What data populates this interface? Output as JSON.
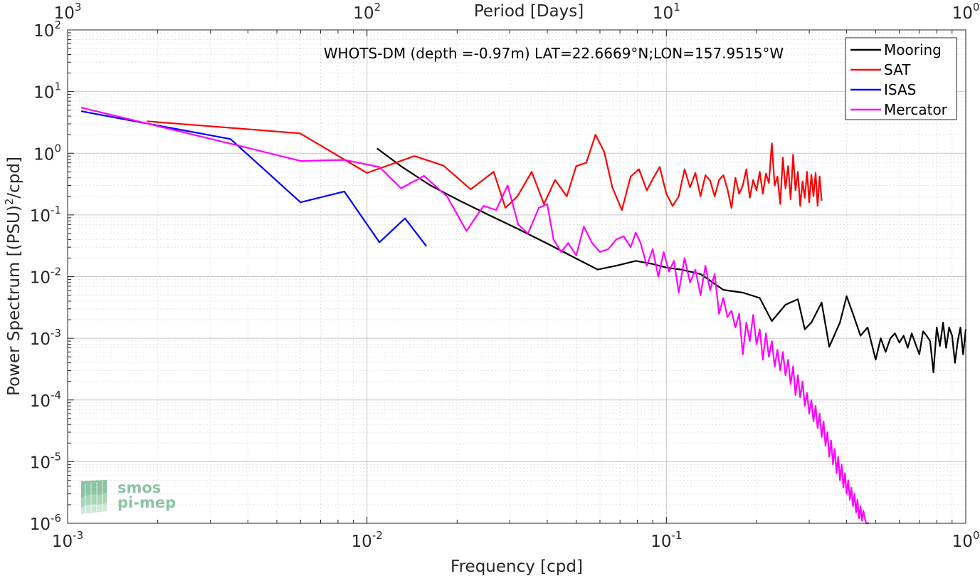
{
  "chart_data": {
    "type": "line",
    "title": "",
    "annotation": "WHOTS-DM (depth =-0.97m) LAT=22.6669°N;LON=157.9515°W",
    "xlabel": "Frequency [cpd]",
    "ylabel": "Power Spectrum [(PSU)²/cpd]",
    "top_xlabel": "Period [Days]",
    "xscale": "log",
    "yscale": "log",
    "xlim": [
      0.001,
      1
    ],
    "ylim": [
      1e-06,
      100
    ],
    "grid": true,
    "legend_position": "top-right",
    "x_ticks": [
      {
        "value": 0.001,
        "base": "10",
        "exp": "-3"
      },
      {
        "value": 0.01,
        "base": "10",
        "exp": "-2"
      },
      {
        "value": 0.1,
        "base": "10",
        "exp": "-1"
      },
      {
        "value": 1,
        "base": "10",
        "exp": "0"
      }
    ],
    "top_ticks": [
      {
        "value": 0.001,
        "base": "10",
        "exp": "3"
      },
      {
        "value": 0.01,
        "base": "10",
        "exp": "2"
      },
      {
        "value": 0.1,
        "base": "10",
        "exp": "1"
      },
      {
        "value": 1,
        "base": "10",
        "exp": "0"
      }
    ],
    "y_ticks": [
      {
        "value": 100,
        "base": "10",
        "exp": "2"
      },
      {
        "value": 10,
        "base": "10",
        "exp": "1"
      },
      {
        "value": 1,
        "base": "10",
        "exp": "0"
      },
      {
        "value": 0.1,
        "base": "10",
        "exp": "-1"
      },
      {
        "value": 0.01,
        "base": "10",
        "exp": "-2"
      },
      {
        "value": 0.001,
        "base": "10",
        "exp": "-3"
      },
      {
        "value": 0.0001,
        "base": "10",
        "exp": "-4"
      },
      {
        "value": 1e-05,
        "base": "10",
        "exp": "-5"
      },
      {
        "value": 1e-06,
        "base": "10",
        "exp": "-6"
      }
    ],
    "series": [
      {
        "name": "Mooring",
        "color": "#000000",
        "x": [
          0.0108,
          0.0131,
          0.0163,
          0.0204,
          0.0255,
          0.0318,
          0.0397,
          0.0496,
          0.059,
          0.068,
          0.079,
          0.09,
          0.1,
          0.112,
          0.13,
          0.155,
          0.18,
          0.205,
          0.225,
          0.25,
          0.275,
          0.29,
          0.305,
          0.33,
          0.35,
          0.38,
          0.4,
          0.42,
          0.445,
          0.47,
          0.5,
          0.52,
          0.54,
          0.56,
          0.58,
          0.6,
          0.62,
          0.64,
          0.66,
          0.68,
          0.7,
          0.72,
          0.74,
          0.76,
          0.78,
          0.8,
          0.82,
          0.84,
          0.86,
          0.88,
          0.9,
          0.92,
          0.94,
          0.96,
          0.98,
          1.0
        ],
        "y": [
          1.2,
          0.6,
          0.3,
          0.17,
          0.1,
          0.06,
          0.035,
          0.02,
          0.013,
          0.015,
          0.018,
          0.016,
          0.014,
          0.013,
          0.011,
          0.0061,
          0.0055,
          0.0045,
          0.0019,
          0.0035,
          0.0043,
          0.0014,
          0.0018,
          0.0038,
          0.00073,
          0.0018,
          0.0048,
          0.0025,
          0.0011,
          0.0015,
          0.00045,
          0.001,
          0.0006,
          0.001,
          0.0012,
          0.00085,
          0.0011,
          0.0007,
          0.0012,
          0.0008,
          0.00055,
          0.0013,
          0.0011,
          0.0009,
          0.00028,
          0.0015,
          0.00075,
          0.0018,
          0.0007,
          0.0015,
          0.0011,
          0.0004,
          0.0009,
          0.0015,
          0.00055,
          0.0014
        ]
      },
      {
        "name": "SAT",
        "color": "#ff0000",
        "x": [
          0.00184,
          0.00598,
          0.01,
          0.0144,
          0.018,
          0.0222,
          0.0265,
          0.029,
          0.0318,
          0.0355,
          0.039,
          0.0425,
          0.0465,
          0.05,
          0.054,
          0.058,
          0.062,
          0.066,
          0.071,
          0.076,
          0.081,
          0.086,
          0.09,
          0.095,
          0.1,
          0.105,
          0.11,
          0.115,
          0.12,
          0.125,
          0.13,
          0.135,
          0.14,
          0.145,
          0.15,
          0.155,
          0.16,
          0.165,
          0.17,
          0.175,
          0.18,
          0.185,
          0.19,
          0.195,
          0.2,
          0.205,
          0.21,
          0.215,
          0.22,
          0.225,
          0.23,
          0.235,
          0.24,
          0.245,
          0.25,
          0.255,
          0.26,
          0.265,
          0.27,
          0.275,
          0.28,
          0.285,
          0.29,
          0.295,
          0.3,
          0.305,
          0.31,
          0.315,
          0.32,
          0.325,
          0.33
        ],
        "y": [
          3.3,
          2.1,
          0.48,
          0.9,
          0.63,
          0.26,
          0.5,
          0.13,
          0.2,
          0.5,
          0.15,
          0.37,
          0.2,
          0.62,
          0.7,
          2.0,
          1.05,
          0.28,
          0.12,
          0.42,
          0.55,
          0.25,
          0.38,
          0.6,
          0.22,
          0.14,
          0.2,
          0.55,
          0.28,
          0.48,
          0.2,
          0.44,
          0.36,
          0.2,
          0.37,
          0.44,
          0.26,
          0.13,
          0.4,
          0.22,
          0.3,
          0.55,
          0.19,
          0.37,
          0.25,
          0.5,
          0.22,
          0.47,
          0.33,
          1.45,
          0.3,
          0.42,
          0.15,
          0.85,
          0.27,
          0.62,
          0.18,
          0.95,
          0.25,
          0.5,
          0.14,
          0.35,
          0.19,
          0.5,
          0.16,
          0.45,
          0.2,
          0.48,
          0.14,
          0.42,
          0.17
        ]
      },
      {
        "name": "ISAS",
        "color": "#0000ff",
        "x": [
          0.00111,
          0.0035,
          0.006,
          0.0084,
          0.011,
          0.0134,
          0.0158
        ],
        "y": [
          4.8,
          1.7,
          0.16,
          0.24,
          0.036,
          0.088,
          0.031
        ]
      },
      {
        "name": "Mercator",
        "color": "#ff00ff",
        "x": [
          0.00111,
          0.0038,
          0.006,
          0.0084,
          0.011,
          0.013,
          0.0155,
          0.0185,
          0.0215,
          0.0245,
          0.027,
          0.0295,
          0.032,
          0.0345,
          0.0375,
          0.04,
          0.042,
          0.0445,
          0.047,
          0.05,
          0.053,
          0.0565,
          0.06,
          0.064,
          0.068,
          0.072,
          0.076,
          0.079,
          0.082,
          0.086,
          0.09,
          0.094,
          0.098,
          0.102,
          0.106,
          0.11,
          0.115,
          0.12,
          0.125,
          0.13,
          0.135,
          0.14,
          0.145,
          0.15,
          0.155,
          0.16,
          0.165,
          0.17,
          0.175,
          0.18,
          0.185,
          0.19,
          0.195,
          0.2,
          0.205,
          0.21,
          0.215,
          0.22,
          0.225,
          0.23,
          0.235,
          0.24,
          0.245,
          0.25,
          0.255,
          0.26,
          0.265,
          0.27,
          0.275,
          0.28,
          0.285,
          0.29,
          0.295,
          0.3,
          0.305,
          0.31,
          0.315,
          0.32,
          0.325,
          0.33,
          0.335,
          0.34,
          0.345,
          0.35,
          0.355,
          0.36,
          0.365,
          0.37,
          0.375,
          0.38,
          0.385,
          0.39,
          0.395,
          0.4,
          0.405,
          0.41,
          0.415,
          0.42,
          0.425,
          0.43,
          0.435,
          0.44,
          0.445,
          0.45,
          0.455,
          0.46,
          0.465,
          0.47,
          0.475
        ],
        "y": [
          5.5,
          1.3,
          0.75,
          0.78,
          0.6,
          0.27,
          0.43,
          0.2,
          0.055,
          0.14,
          0.12,
          0.3,
          0.07,
          0.05,
          0.13,
          0.15,
          0.04,
          0.025,
          0.035,
          0.022,
          0.065,
          0.035,
          0.025,
          0.028,
          0.04,
          0.045,
          0.03,
          0.052,
          0.035,
          0.015,
          0.028,
          0.01,
          0.025,
          0.012,
          0.018,
          0.0055,
          0.02,
          0.008,
          0.013,
          0.005,
          0.015,
          0.006,
          0.011,
          0.0025,
          0.0045,
          0.0022,
          0.0028,
          0.0015,
          0.0025,
          0.00055,
          0.0018,
          0.0009,
          0.0024,
          0.0008,
          0.0014,
          0.00045,
          0.0012,
          0.0005,
          0.0009,
          0.00035,
          0.00065,
          0.0003,
          0.0006,
          0.00025,
          0.00045,
          0.00018,
          0.00035,
          0.00012,
          0.00025,
          0.00011,
          0.0002,
          8e-05,
          0.00013,
          6e-05,
          0.0001,
          4.5e-05,
          8e-05,
          3.5e-05,
          6e-05,
          2.5e-05,
          4.5e-05,
          1.8e-05,
          3e-05,
          1.2e-05,
          2.2e-05,
          9e-06,
          1.6e-05,
          6.5e-06,
          1.2e-05,
          5e-06,
          9e-06,
          3.8e-06,
          6.5e-06,
          3e-06,
          5e-06,
          2.4e-06,
          3.8e-06,
          1.9e-06,
          3e-06,
          1.5e-06,
          2.4e-06,
          1.2e-06,
          1.9e-06,
          1.1e-06,
          1.6e-06,
          1.2e-06,
          1e-06,
          1e-06,
          1e-06
        ]
      }
    ]
  },
  "logo": {
    "line1": "smos",
    "line2": "pi-mep"
  }
}
